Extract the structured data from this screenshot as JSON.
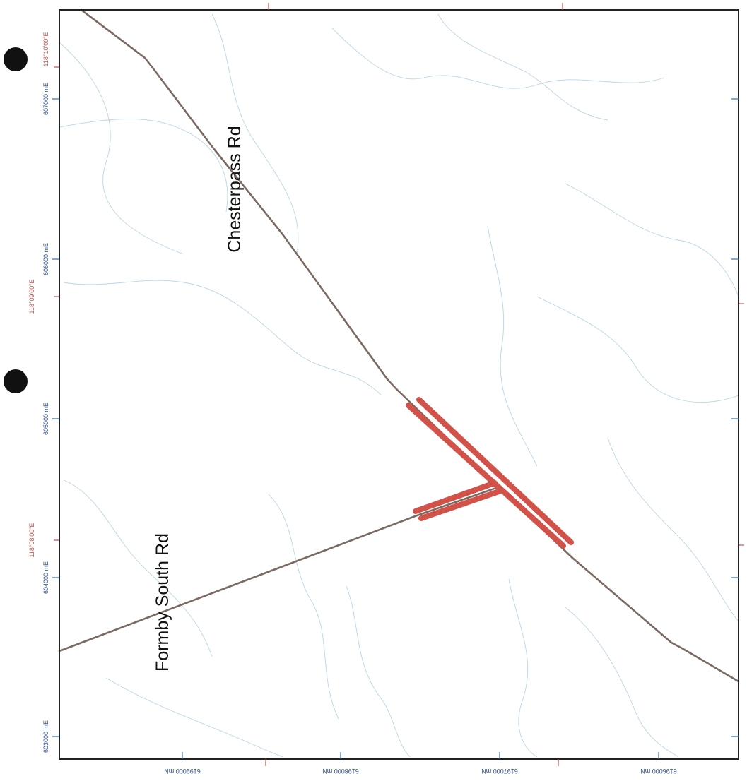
{
  "map": {
    "road_labels": {
      "chesterpass": "Chesterpass Rd",
      "formby": "Formby South Rd"
    },
    "easting_labels": [
      "607000 mE",
      "606000 mE",
      "605000 mE",
      "604000 mE",
      "603000 mE"
    ],
    "longitude_labels": [
      "118°10'00\"E",
      "118°09'00\"E",
      "118°08'00\"E"
    ],
    "northing_labels": [
      "6199000 mN",
      "6198000 mN",
      "6197000 mN",
      "6196000 mN"
    ],
    "colors": {
      "road": "#7a6a62",
      "highlight": "#d2524a",
      "frame": "#222222",
      "grid_tick": "#3a6db0",
      "graticule_tick": "#c0504d",
      "easting_text": "#2f4f8f",
      "longitude_text": "#c0504d",
      "contour": "#b9d6e6",
      "punch_hole": "#111111"
    }
  }
}
